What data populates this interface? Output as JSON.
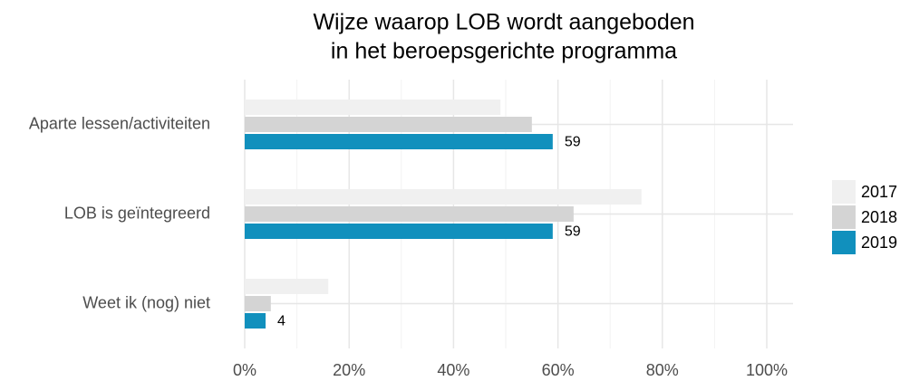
{
  "chart_data": {
    "type": "hbar",
    "title": [
      "Wijze waarop LOB wordt aangeboden",
      "in het beroepsgerichte programma"
    ],
    "categories": [
      "Aparte lessen/activiteiten",
      "LOB is geïntegreerd",
      "Weet ik (nog) niet"
    ],
    "series": [
      {
        "name": "2017",
        "color": "#f0f0f0",
        "values": [
          49,
          76,
          16
        ]
      },
      {
        "name": "2018",
        "color": "#d4d4d4",
        "values": [
          55,
          63,
          5
        ]
      },
      {
        "name": "2019",
        "color": "#1190bd",
        "values": [
          59,
          59,
          4
        ],
        "data_labels": true
      }
    ],
    "xlim": [
      0,
      100
    ],
    "xticks": [
      {
        "value": 0,
        "label": "0%"
      },
      {
        "value": 20,
        "label": "20%"
      },
      {
        "value": 40,
        "label": "40%"
      },
      {
        "value": 60,
        "label": "60%"
      },
      {
        "value": 80,
        "label": "80%"
      },
      {
        "value": 100,
        "label": "100%"
      }
    ],
    "grid": true,
    "legend": "right"
  }
}
